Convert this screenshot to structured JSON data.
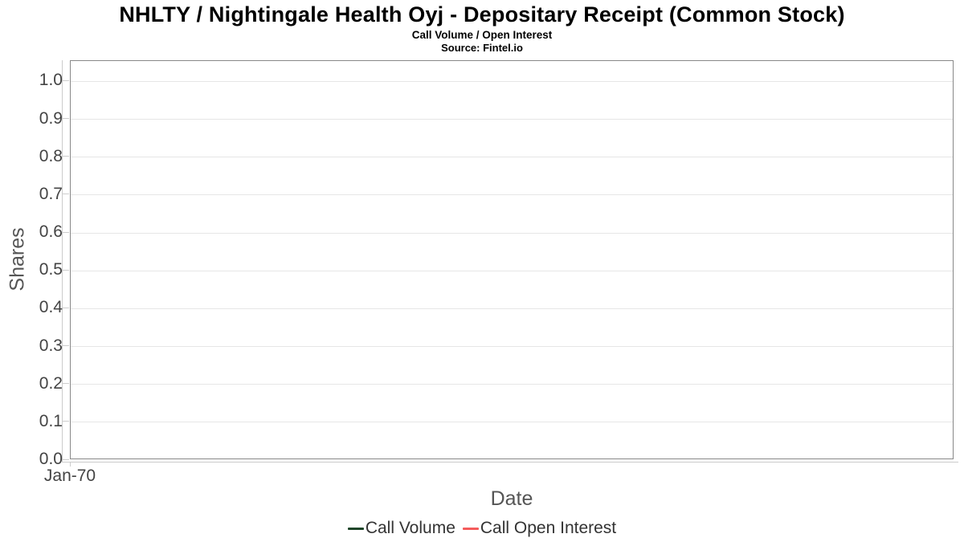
{
  "chart_data": {
    "type": "line",
    "title": "NHLTY / Nightingale Health Oyj - Depositary Receipt (Common Stock)",
    "subtitle": "Call Volume / Open Interest",
    "source": "Source: Fintel.io",
    "xlabel": "Date",
    "ylabel": "Shares",
    "x_tick_labels": [
      "Jan-70"
    ],
    "x_tick_positions": [
      0
    ],
    "y_ticks": [
      {
        "label": "0.0",
        "value": 0.0
      },
      {
        "label": "0.1",
        "value": 0.1
      },
      {
        "label": "0.2",
        "value": 0.2
      },
      {
        "label": "0.3",
        "value": 0.3
      },
      {
        "label": "0.4",
        "value": 0.4
      },
      {
        "label": "0.5",
        "value": 0.5
      },
      {
        "label": "0.6",
        "value": 0.6
      },
      {
        "label": "0.7",
        "value": 0.7
      },
      {
        "label": "0.8",
        "value": 0.8
      },
      {
        "label": "0.9",
        "value": 0.9
      },
      {
        "label": "1.0",
        "value": 1.0
      }
    ],
    "ylim": [
      0,
      1.054
    ],
    "grid": true,
    "legend_position": "bottom",
    "series": [
      {
        "name": "Call Volume",
        "color": "#1e4629",
        "x": [],
        "values": []
      },
      {
        "name": "Call Open Interest",
        "color": "#f45b5b",
        "x": [],
        "values": []
      }
    ]
  },
  "colors": {
    "background": "#ffffff",
    "plot_border": "#888888",
    "gridline": "#e6e6e6",
    "axis_line": "#cccccc",
    "tick_label_text": "#444444",
    "axis_title_text": "#555555",
    "legend_text": "#333333",
    "title_text": "#000000"
  }
}
